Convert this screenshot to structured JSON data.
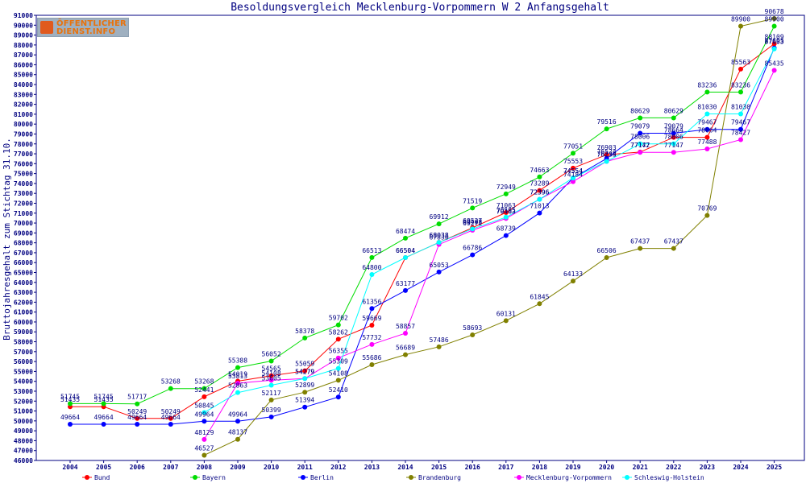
{
  "logo": {
    "line1": "ÖFFENTLICHER",
    "line2": "DIENST.INFO"
  },
  "chart_data": {
    "type": "line",
    "title": "Besoldungsvergleich Mecklenburg-Vorpommern W 2 Anfangsgehalt",
    "xlabel": "",
    "ylabel": "Bruttojahresgehalt zum Stichtag 31.10.",
    "ylim": [
      46000,
      91000
    ],
    "ytick_step": 1000,
    "grid": false,
    "legend_position": "bottom",
    "categories": [
      "2004",
      "2005",
      "2006",
      "2007",
      "2008",
      "2009",
      "2010",
      "2011",
      "2012",
      "2013",
      "2014",
      "2015",
      "2016",
      "2017",
      "2018",
      "2019",
      "2020",
      "2021",
      "2022",
      "2023",
      "2024",
      "2025"
    ],
    "series": [
      {
        "name": "Bund",
        "color": "#ff0000",
        "values": [
          51435,
          51435,
          50249,
          50249,
          52441,
          54019,
          54565,
          55059,
          58262,
          59669,
          66504,
          68038,
          69527,
          71063,
          73289,
          75553,
          76903,
          77172,
          78664,
          78664,
          85563,
          88109
        ]
      },
      {
        "name": "Bayern",
        "color": "#00dd00",
        "values": [
          51745,
          51745,
          51717,
          53268,
          53268,
          55388,
          56052,
          58378,
          59702,
          66513,
          68474,
          69912,
          71519,
          72949,
          74663,
          77051,
          79516,
          80629,
          80629,
          83236,
          83236,
          89900
        ]
      },
      {
        "name": "Berlin",
        "color": "#0000ff",
        "values": [
          49664,
          49664,
          49664,
          49664,
          49964,
          49964,
          50399,
          51394,
          52410,
          61356,
          63177,
          65053,
          66786,
          68739,
          71013,
          74554,
          76524,
          79079,
          79079,
          79467,
          79467,
          87695
        ]
      },
      {
        "name": "Brandenburg",
        "color": "#808000",
        "values": [
          null,
          null,
          null,
          null,
          46527,
          48137,
          52117,
          52899,
          54108,
          55686,
          56689,
          57486,
          58693,
          60131,
          61845,
          64133,
          66506,
          67437,
          67437,
          70769,
          89900,
          90678
        ]
      },
      {
        "name": "Mecklenburg-Vorpommern",
        "color": "#ff00ff",
        "values": [
          null,
          null,
          null,
          null,
          48129,
          53813,
          54108,
          54279,
          56355,
          57732,
          58857,
          67836,
          69272,
          70463,
          72396,
          74184,
          76233,
          77147,
          77147,
          77488,
          78427,
          85435
        ]
      },
      {
        "name": "Schleswig-Holstein",
        "color": "#00ffff",
        "values": [
          null,
          null,
          null,
          null,
          50845,
          52863,
          53605,
          54279,
          55309,
          64800,
          66504,
          68038,
          69408,
          70595,
          72396,
          74554,
          76234,
          78006,
          78006,
          81030,
          81030,
          87603
        ]
      }
    ]
  }
}
